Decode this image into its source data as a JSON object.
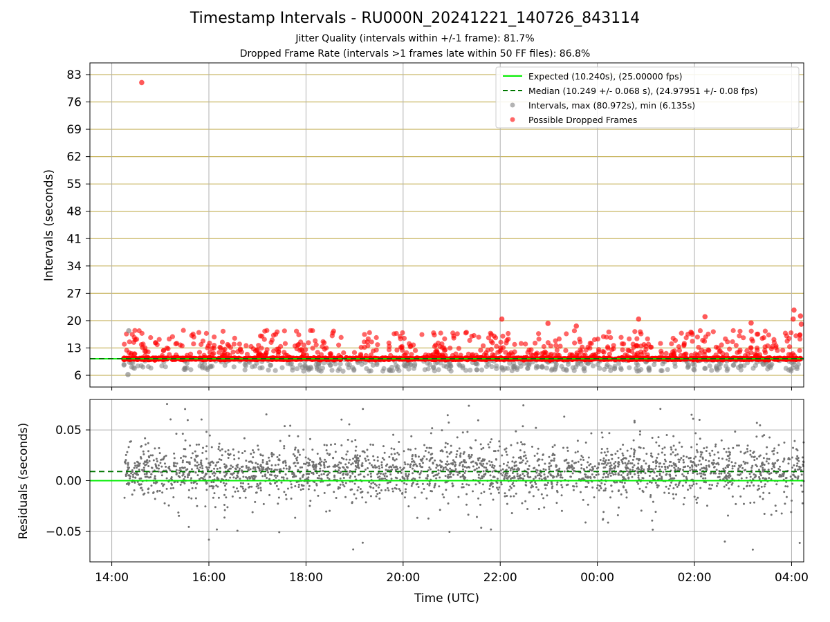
{
  "title": "Timestamp Intervals - RU000N_20241221_140726_843114",
  "subtitle_jitter": "Jitter Quality (intervals within +/-1 frame): 81.7%",
  "subtitle_dropped": "Dropped Frame Rate (intervals >1 frames late within 50 FF files): 86.8%",
  "colors": {
    "expected": "#00ee00",
    "median": "#007700",
    "intervals": "#808080",
    "dropped": "#ff0000",
    "hgrid_top": "#c8b560",
    "grid": "#b0b0b0"
  },
  "chart_data": [
    {
      "type": "scatter",
      "ylabel": "Intervals (seconds)",
      "ylim": [
        3,
        86
      ],
      "yticks": [
        "6",
        "13",
        "20",
        "27",
        "34",
        "41",
        "48",
        "55",
        "62",
        "69",
        "76",
        "83"
      ],
      "xlim_hours": [
        13.55,
        28.25
      ],
      "grid": true,
      "legend_position": "top-right",
      "legend": [
        {
          "label": "Expected (10.240s), (25.00000 fps)",
          "kind": "line",
          "color": "#00ee00"
        },
        {
          "label": "Median (10.249 +/- 0.068 s), (24.97951 +/- 0.08 fps)",
          "kind": "dashed",
          "color": "#007700"
        },
        {
          "label": "Intervals, max (80.972s), min (6.135s)",
          "kind": "dot",
          "color": "#808080"
        },
        {
          "label": "Possible Dropped Frames",
          "kind": "dot",
          "color": "#ff0000"
        }
      ],
      "expected_value": 10.24,
      "median_value": 10.249,
      "series": [
        {
          "name": "Intervals, max (80.972s), min (6.135s)",
          "color": "#808080"
        },
        {
          "name": "Possible Dropped Frames",
          "color": "#ff0000"
        }
      ],
      "highlight_points": [
        {
          "time": "14:37",
          "value": 80.97
        },
        {
          "time": "22:02",
          "value": 20.4
        },
        {
          "time": "22:59",
          "value": 19.3
        },
        {
          "time": "23:34",
          "value": 18.6
        },
        {
          "time": "00:51",
          "value": 20.4
        },
        {
          "time": "02:13",
          "value": 21.0
        },
        {
          "time": "03:10",
          "value": 19.4
        },
        {
          "time": "04:02",
          "value": 20.4
        },
        {
          "time": "04:03",
          "value": 22.7
        },
        {
          "time": "04:11",
          "value": 21.2
        },
        {
          "time": "04:12",
          "value": 19.1
        },
        {
          "time": "14:20",
          "value": 6.2
        },
        {
          "time": "14:21",
          "value": 17.4
        }
      ]
    },
    {
      "type": "scatter",
      "ylabel": "Residuals (seconds)",
      "xlabel": "Time (UTC)",
      "ylim": [
        -0.08,
        0.08
      ],
      "yticks": [
        "−0.05",
        "0.00",
        "0.05"
      ],
      "ytick_values": [
        -0.05,
        0.0,
        0.05
      ],
      "xticks": [
        "14:00",
        "16:00",
        "18:00",
        "20:00",
        "22:00",
        "00:00",
        "02:00",
        "04:00"
      ],
      "xtick_hours": [
        14,
        16,
        18,
        20,
        22,
        24,
        26,
        28
      ],
      "grid": true,
      "expected_residual": 0.0,
      "median_residual": 0.009,
      "series": [
        {
          "name": "Residuals",
          "color": "#707070",
          "time_range": [
            "14:15",
            "04:15"
          ],
          "center": 0.01,
          "spread": 0.03
        }
      ]
    }
  ]
}
